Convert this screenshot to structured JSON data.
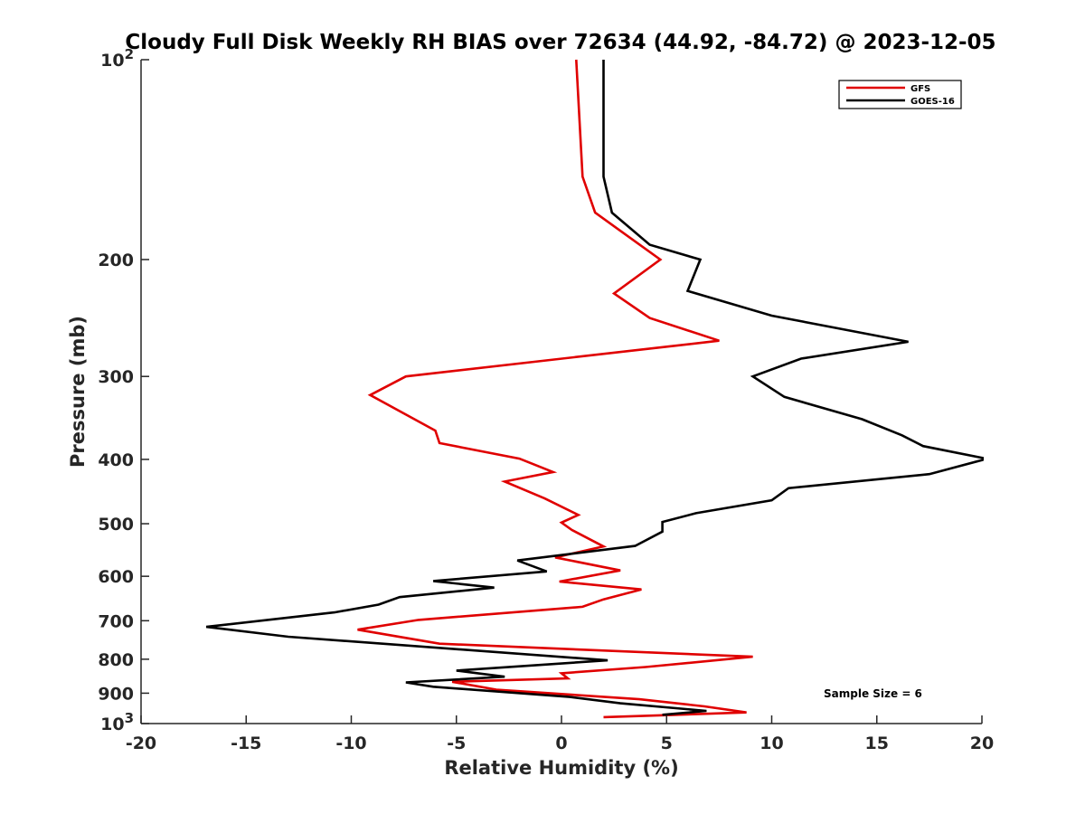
{
  "chart_data": {
    "type": "line",
    "title": "Cloudy Full Disk Weekly RH BIAS over 72634 (44.92, -84.72) @ 2023-12-05",
    "xlabel": "Relative Humidity (%)",
    "ylabel": "Pressure (mb)",
    "xlim": [
      -20,
      20
    ],
    "ylim": [
      100,
      1000
    ],
    "y_scale": "log",
    "y_reversed": true,
    "grid": false,
    "legend_placement": "top-right",
    "x_ticks": [
      -20,
      -15,
      -10,
      -5,
      0,
      5,
      10,
      15,
      20
    ],
    "x_tick_labels": [
      "-20",
      "-15",
      "-10",
      "-5",
      "0",
      "5",
      "10",
      "15",
      "20"
    ],
    "y_ticks": [
      100,
      200,
      300,
      400,
      500,
      600,
      700,
      800,
      900,
      1000
    ],
    "y_tick_labels": [
      "10²",
      "200",
      "300",
      "400",
      "500",
      "600",
      "700",
      "800",
      "900",
      "10³"
    ],
    "annotation": "Sample Size = 6",
    "series": [
      {
        "name": "GFS",
        "color": "#e00000",
        "points": [
          [
            0.7,
            100
          ],
          [
            1.0,
            150
          ],
          [
            1.6,
            170
          ],
          [
            4.7,
            200
          ],
          [
            2.5,
            225
          ],
          [
            4.2,
            245
          ],
          [
            7.5,
            265
          ],
          [
            -7.4,
            300
          ],
          [
            -9.1,
            320
          ],
          [
            -6.0,
            362
          ],
          [
            -5.8,
            378
          ],
          [
            -2.0,
            399
          ],
          [
            -0.4,
            418
          ],
          [
            -2.7,
            432
          ],
          [
            -0.8,
            458
          ],
          [
            0.8,
            485
          ],
          [
            0.0,
            498
          ],
          [
            0.5,
            511
          ],
          [
            2.0,
            541
          ],
          [
            -0.3,
            562
          ],
          [
            2.8,
            588
          ],
          [
            -0.1,
            611
          ],
          [
            3.8,
            628
          ],
          [
            2.0,
            650
          ],
          [
            1.0,
            667
          ],
          [
            -6.8,
            698
          ],
          [
            -9.7,
            722
          ],
          [
            -5.8,
            758
          ],
          [
            9.1,
            793
          ],
          [
            4.0,
            822
          ],
          [
            0.0,
            840
          ],
          [
            0.3,
            855
          ],
          [
            -5.2,
            865
          ],
          [
            -3.1,
            889
          ],
          [
            3.7,
            919
          ],
          [
            6.8,
            942
          ],
          [
            8.8,
            962
          ],
          [
            5.5,
            970
          ],
          [
            2.0,
            978
          ]
        ]
      },
      {
        "name": "GOES-16",
        "color": "#000000",
        "points": [
          [
            2.0,
            100
          ],
          [
            2.0,
            150
          ],
          [
            2.4,
            170
          ],
          [
            4.2,
            190
          ],
          [
            6.6,
            200
          ],
          [
            6.0,
            223
          ],
          [
            10.0,
            243
          ],
          [
            16.5,
            266
          ],
          [
            11.4,
            282
          ],
          [
            9.1,
            300
          ],
          [
            10.6,
            322
          ],
          [
            14.3,
            348
          ],
          [
            16.2,
            368
          ],
          [
            17.2,
            382
          ],
          [
            20.2,
            399
          ],
          [
            20.0,
            401
          ],
          [
            17.5,
            421
          ],
          [
            10.8,
            442
          ],
          [
            10.0,
            461
          ],
          [
            6.4,
            482
          ],
          [
            4.8,
            497
          ],
          [
            4.8,
            514
          ],
          [
            3.5,
            540
          ],
          [
            -2.1,
            568
          ],
          [
            -0.7,
            590
          ],
          [
            -6.1,
            610
          ],
          [
            -3.2,
            624
          ],
          [
            -7.7,
            645
          ],
          [
            -8.7,
            662
          ],
          [
            -10.8,
            680
          ],
          [
            -16.9,
            715
          ],
          [
            -13.0,
            740
          ],
          [
            2.2,
            803
          ],
          [
            -5.0,
            832
          ],
          [
            -2.7,
            850
          ],
          [
            -7.4,
            867
          ],
          [
            -6.1,
            880
          ],
          [
            0.4,
            912
          ],
          [
            2.8,
            932
          ],
          [
            6.9,
            957
          ],
          [
            4.8,
            970
          ]
        ]
      }
    ]
  }
}
